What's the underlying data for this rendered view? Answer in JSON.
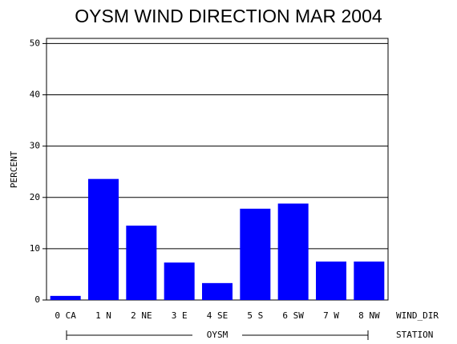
{
  "chart_data": {
    "type": "bar",
    "title": "OYSM WIND DIRECTION MAR 2004",
    "y_label": "PERCENT",
    "x_label": "WIND_DIR",
    "group_axis_label": "STATION",
    "group_label": "OYSM",
    "categories": [
      "0 CA",
      "1 N",
      "2 NE",
      "3 E",
      "4 SE",
      "5 S",
      "6 SW",
      "7 W",
      "8 NW"
    ],
    "values": [
      0.8,
      23.6,
      14.5,
      7.3,
      3.3,
      17.8,
      18.8,
      7.5,
      7.5
    ],
    "color": "#0000ff",
    "ylim": [
      0,
      51
    ],
    "yticks": [
      0,
      10,
      20,
      30,
      40,
      50
    ],
    "grid": true
  }
}
